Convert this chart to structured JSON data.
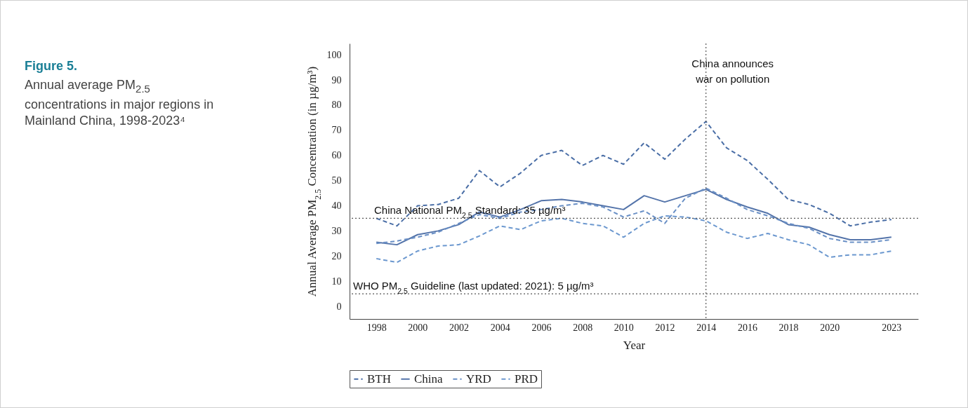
{
  "chart_data": {
    "type": "line",
    "title": "Figure 5.",
    "subtitle": "Annual average PM$_{2.5}$ concentrations in major regions in Mainland China, 1998-2023⁴",
    "xlabel": "Year",
    "ylabel": "Annual Average  PM$_{2.5}$ Concentration (in µg/m³)",
    "x": [
      1998,
      1999,
      2000,
      2001,
      2002,
      2003,
      2004,
      2005,
      2006,
      2007,
      2008,
      2009,
      2010,
      2011,
      2012,
      2013,
      2014,
      2015,
      2016,
      2017,
      2018,
      2019,
      2020,
      2021,
      2022,
      2023
    ],
    "series": [
      {
        "name": "BTH",
        "color": "#4a6ea6",
        "line_style": "dashed",
        "values": [
          35,
          32,
          40,
          40.5,
          43,
          54,
          47.5,
          53,
          60,
          62,
          56,
          60,
          56.5,
          65,
          58.5,
          66.5,
          73.5,
          63,
          58,
          50.5,
          42.5,
          40.5,
          37,
          32,
          33.5,
          34.5
        ]
      },
      {
        "name": "China",
        "color": "#5474aa",
        "line_style": "solid",
        "values": [
          25.5,
          24.5,
          28.5,
          30,
          32.5,
          37.5,
          35.5,
          38.5,
          42,
          42.5,
          41.5,
          40,
          38.5,
          44,
          41.5,
          44,
          46.5,
          42.5,
          39.5,
          37,
          32.5,
          31.5,
          28.5,
          26.5,
          26.5,
          27.5
        ]
      },
      {
        "name": "YRD",
        "color": "#6a90c6",
        "line_style": "dashed",
        "values": [
          25,
          26,
          27.5,
          29.5,
          33,
          36.5,
          35,
          37.5,
          38.5,
          40,
          41,
          39.5,
          35.5,
          38,
          33,
          43,
          47,
          43,
          38.5,
          36,
          33,
          31,
          27,
          25.5,
          25.5,
          26.5
        ]
      },
      {
        "name": "PRD",
        "color": "#6c98cf",
        "line_style": "dashed",
        "values": [
          19,
          17.5,
          22,
          24,
          24.5,
          28,
          32,
          30.5,
          34,
          35,
          33,
          32,
          27.5,
          33,
          36,
          35.5,
          34,
          29.5,
          27,
          29,
          26.5,
          24.5,
          19.5,
          20.5,
          20.5,
          22
        ]
      }
    ],
    "xlim": [
      1996.7,
      2024.3
    ],
    "xticks": [
      1998,
      2000,
      2002,
      2004,
      2006,
      2008,
      2010,
      2012,
      2014,
      2016,
      2018,
      2020,
      2023
    ],
    "ylim": [
      -5,
      104.5
    ],
    "yticks": [
      0,
      10,
      20,
      30,
      40,
      50,
      60,
      70,
      80,
      90,
      100
    ],
    "ref_lines": [
      {
        "axis": "y",
        "value": 35,
        "label": "China National PM$_{2.5}$ Standard: 35 µg/m³",
        "color": "#555555",
        "line_style": "dotted"
      },
      {
        "axis": "y",
        "value": 5,
        "label": "WHO PM$_{2.5}$ Guideline (last updated: 2021): 5 µg/m³",
        "color": "#555555",
        "line_style": "dotted"
      },
      {
        "axis": "x",
        "value": 2014,
        "label": "China announces\nwar on pollution",
        "color": "#555555",
        "line_style": "dotted"
      }
    ],
    "legend": "bottom"
  }
}
